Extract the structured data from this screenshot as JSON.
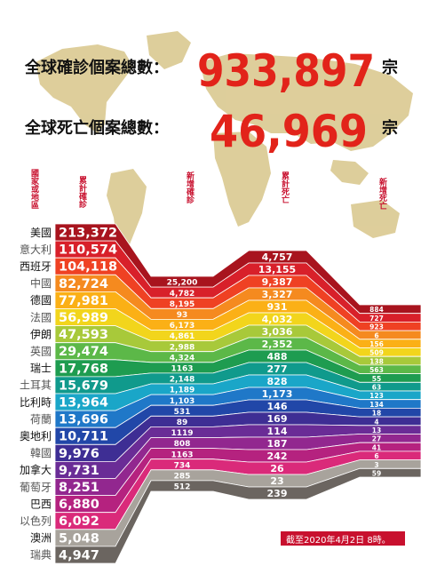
{
  "headline": {
    "confirmed_label": "全球確診個案總數：",
    "confirmed_value": "933,897",
    "deaths_label": "全球死亡個案總數：",
    "deaths_value": "46,969",
    "unit": "宗"
  },
  "column_headers": {
    "country": "國家或地區",
    "cumulative_confirmed": "累計確診",
    "new_confirmed": "新增確診",
    "cumulative_deaths": "累計死亡",
    "new_deaths": "新增死亡"
  },
  "footnote": "截至2020年4月2日 8時。",
  "colors": {
    "headline_red": "#e2231a",
    "header_red": "#c8102e",
    "map": "#d8c68a",
    "band_outline": "#ffffff"
  },
  "chart_data": {
    "type": "table",
    "title": "",
    "columns": [
      "國家或地區",
      "累計確診",
      "新增確診",
      "累計死亡",
      "新增死亡"
    ],
    "rows": [
      {
        "country": "美國",
        "confirmed": "213,372",
        "new_confirmed": "25,200",
        "deaths": "4,757",
        "new_deaths": "884",
        "color": "#a8141e"
      },
      {
        "country": "意大利",
        "confirmed": "110,574",
        "new_confirmed": "4,782",
        "deaths": "13,155",
        "new_deaths": "727",
        "color": "#d8202a"
      },
      {
        "country": "西班牙",
        "confirmed": "104,118",
        "new_confirmed": "8,195",
        "deaths": "9,387",
        "new_deaths": "923",
        "color": "#ef4123"
      },
      {
        "country": "中國",
        "confirmed": "82,724",
        "new_confirmed": "93",
        "deaths": "3,327",
        "new_deaths": "6",
        "color": "#f58a1f"
      },
      {
        "country": "德國",
        "confirmed": "77,981",
        "new_confirmed": "6,173",
        "deaths": "931",
        "new_deaths": "156",
        "color": "#fbb016"
      },
      {
        "country": "法國",
        "confirmed": "56,989",
        "new_confirmed": "4,861",
        "deaths": "4,032",
        "new_deaths": "509",
        "color": "#f2d51c"
      },
      {
        "country": "伊朗",
        "confirmed": "47,593",
        "new_confirmed": "2,988",
        "deaths": "3,036",
        "new_deaths": "138",
        "color": "#a8c93a"
      },
      {
        "country": "英國",
        "confirmed": "29,474",
        "new_confirmed": "4,324",
        "deaths": "2,352",
        "new_deaths": "563",
        "color": "#5cb848"
      },
      {
        "country": "瑞士",
        "confirmed": "17,768",
        "new_confirmed": "1163",
        "deaths": "488",
        "new_deaths": "55",
        "color": "#1e9c50"
      },
      {
        "country": "土耳其",
        "confirmed": "15,679",
        "new_confirmed": "2,148",
        "deaths": "277",
        "new_deaths": "63",
        "color": "#109a8c"
      },
      {
        "country": "比利時",
        "confirmed": "13,964",
        "new_confirmed": "1,189",
        "deaths": "828",
        "new_deaths": "123",
        "color": "#1aa6c8"
      },
      {
        "country": "荷蘭",
        "confirmed": "13,696",
        "new_confirmed": "1,103",
        "deaths": "1,173",
        "new_deaths": "134",
        "color": "#1f78c8"
      },
      {
        "country": "奧地利",
        "confirmed": "10,711",
        "new_confirmed": "531",
        "deaths": "146",
        "new_deaths": "18",
        "color": "#2147a8"
      },
      {
        "country": "韓國",
        "confirmed": "9,976",
        "new_confirmed": "89",
        "deaths": "169",
        "new_deaths": "4",
        "color": "#3e2e94"
      },
      {
        "country": "加拿大",
        "confirmed": "9,731",
        "new_confirmed": "1119",
        "deaths": "114",
        "new_deaths": "13",
        "color": "#6a2c96"
      },
      {
        "country": "葡萄牙",
        "confirmed": "8,251",
        "new_confirmed": "808",
        "deaths": "187",
        "new_deaths": "27",
        "color": "#92278f"
      },
      {
        "country": "巴西",
        "confirmed": "6,880",
        "new_confirmed": "1163",
        "deaths": "242",
        "new_deaths": "41",
        "color": "#b5227f"
      },
      {
        "country": "以色列",
        "confirmed": "6,092",
        "new_confirmed": "734",
        "deaths": "26",
        "new_deaths": "6",
        "color": "#da2a7a"
      },
      {
        "country": "澳洲",
        "confirmed": "5,048",
        "new_confirmed": "285",
        "deaths": "23",
        "new_deaths": "3",
        "color": "#a8a39c"
      },
      {
        "country": "瑞典",
        "confirmed": "4,947",
        "new_confirmed": "512",
        "deaths": "239",
        "new_deaths": "59",
        "color": "#6b6560"
      }
    ]
  }
}
